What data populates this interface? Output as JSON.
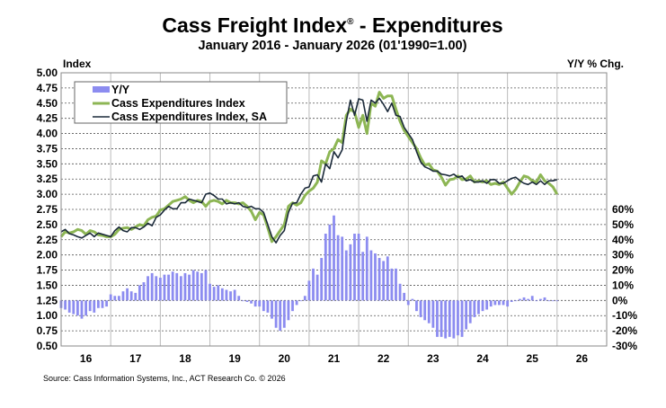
{
  "chart_data": {
    "type": "bar+line",
    "title": "Cass Freight Index",
    "title_mark": "®",
    "title_suffix": " - Expenditures",
    "subtitle": "January 2016 - January 2026 (01'1990=1.00)",
    "ylabel_left": "Index",
    "ylabel_right": "Y/Y % Chg.",
    "ylim_left": [
      0.5,
      5.0
    ],
    "ylim_right": [
      -30,
      60
    ],
    "left_ticks": [
      "5.00",
      "4.75",
      "4.50",
      "4.25",
      "4.00",
      "3.75",
      "3.50",
      "3.25",
      "3.00",
      "2.75",
      "2.50",
      "2.25",
      "2.00",
      "1.75",
      "1.50",
      "1.25",
      "1.00",
      "0.75",
      "0.50"
    ],
    "right_ticks": [
      "60%",
      "50%",
      "40%",
      "30%",
      "20%",
      "10%",
      "0%",
      "-10%",
      "-20%",
      "-30%"
    ],
    "x_ticks": [
      "16",
      "17",
      "18",
      "19",
      "20",
      "21",
      "22",
      "23",
      "24",
      "25",
      "26"
    ],
    "x_start": "2016-01",
    "x_end": "2026-01",
    "grid": true,
    "legend_placement": "top-left",
    "series": [
      {
        "name": "Y/Y",
        "type": "bar",
        "axis": "right",
        "color": "#8c8cf0",
        "values": [
          -5,
          -6,
          -8,
          -9,
          -10,
          -12,
          -10,
          -7,
          -8,
          -5,
          -5,
          -4,
          4,
          3,
          3,
          6,
          8,
          6,
          5,
          10,
          12,
          16,
          18,
          16,
          15,
          17,
          17,
          19,
          18,
          16,
          18,
          17,
          20,
          19,
          18,
          20,
          11,
          9,
          10,
          8,
          7,
          6,
          7,
          3,
          0,
          -1,
          -2,
          -4,
          -4,
          -7,
          -8,
          -12,
          -18,
          -20,
          -18,
          -13,
          -7,
          -3,
          0,
          3,
          13,
          21,
          17,
          28,
          44,
          50,
          56,
          43,
          42,
          33,
          37,
          44,
          44,
          32,
          42,
          33,
          31,
          28,
          26,
          29,
          21,
          21,
          11,
          5,
          -3,
          1,
          -7,
          -11,
          -13,
          -15,
          -18,
          -24,
          -24,
          -25,
          -24,
          -25,
          -23,
          -24,
          -19,
          -15,
          -11,
          -9,
          -7,
          -6,
          -4,
          -3,
          -3,
          -3,
          -4,
          -1,
          0,
          1,
          2,
          1,
          3,
          0,
          1,
          2,
          0,
          0,
          0
        ]
      },
      {
        "name": "Cass Expenditures Index",
        "type": "line",
        "axis": "left",
        "color": "#8db654",
        "values": [
          2.3,
          2.38,
          2.36,
          2.38,
          2.42,
          2.4,
          2.34,
          2.4,
          2.38,
          2.33,
          2.32,
          2.3,
          2.3,
          2.34,
          2.42,
          2.44,
          2.45,
          2.42,
          2.46,
          2.5,
          2.48,
          2.58,
          2.62,
          2.64,
          2.74,
          2.76,
          2.82,
          2.88,
          2.9,
          2.92,
          2.96,
          2.9,
          2.86,
          2.9,
          2.88,
          2.8,
          2.88,
          2.9,
          2.88,
          2.84,
          2.9,
          2.86,
          2.86,
          2.84,
          2.86,
          2.8,
          2.72,
          2.58,
          2.7,
          2.66,
          2.45,
          2.22,
          2.3,
          2.4,
          2.5,
          2.8,
          2.86,
          2.82,
          2.86,
          2.98,
          3.05,
          3.1,
          3.2,
          3.55,
          3.5,
          3.7,
          3.75,
          3.9,
          3.85,
          4.3,
          4.4,
          4.35,
          4.1,
          4.3,
          4.0,
          4.5,
          4.45,
          4.68,
          4.58,
          4.62,
          4.62,
          4.4,
          4.2,
          4.05,
          3.95,
          3.85,
          3.75,
          3.6,
          3.48,
          3.5,
          3.4,
          3.38,
          3.28,
          3.15,
          3.24,
          3.25,
          3.3,
          3.24,
          3.25,
          3.3,
          3.2,
          3.22,
          3.2,
          3.22,
          3.16,
          3.18,
          3.16,
          3.2,
          3.1,
          3.0,
          3.08,
          3.2,
          3.3,
          3.28,
          3.22,
          3.2,
          3.32,
          3.22,
          3.18,
          3.12,
          3.0
        ]
      },
      {
        "name": "Cass Expenditures Index, SA",
        "type": "line",
        "axis": "left",
        "color": "#1b2a3a",
        "values": [
          2.38,
          2.42,
          2.35,
          2.33,
          2.3,
          2.28,
          2.32,
          2.36,
          2.3,
          2.36,
          2.34,
          2.32,
          2.3,
          2.4,
          2.46,
          2.4,
          2.38,
          2.45,
          2.45,
          2.42,
          2.46,
          2.52,
          2.48,
          2.62,
          2.66,
          2.74,
          2.8,
          2.76,
          2.76,
          2.86,
          2.86,
          2.92,
          2.9,
          2.88,
          2.86,
          3.0,
          3.02,
          2.98,
          2.92,
          2.92,
          2.84,
          2.86,
          2.84,
          2.86,
          2.8,
          2.78,
          2.8,
          2.76,
          2.76,
          2.7,
          2.5,
          2.3,
          2.2,
          2.32,
          2.4,
          2.7,
          2.85,
          2.86,
          3.0,
          3.1,
          3.12,
          3.3,
          3.32,
          3.2,
          3.5,
          3.42,
          3.7,
          3.6,
          3.73,
          4.2,
          4.55,
          4.3,
          4.57,
          4.55,
          4.2,
          4.55,
          4.5,
          4.58,
          4.48,
          4.36,
          4.5,
          4.3,
          4.28,
          4.1,
          4.0,
          3.9,
          3.7,
          3.53,
          3.45,
          3.42,
          3.38,
          3.38,
          3.33,
          3.32,
          3.3,
          3.33,
          3.28,
          3.3,
          3.22,
          3.24,
          3.2,
          3.2,
          3.22,
          3.18,
          3.24,
          3.24,
          3.18,
          3.18,
          3.22,
          3.26,
          3.28,
          3.22,
          3.18,
          3.16,
          3.2,
          3.16,
          3.22,
          3.16,
          3.22,
          3.22,
          3.24
        ]
      }
    ],
    "source": "Source: Cass Information Systems, Inc., ACT Research Co. © 2026"
  }
}
